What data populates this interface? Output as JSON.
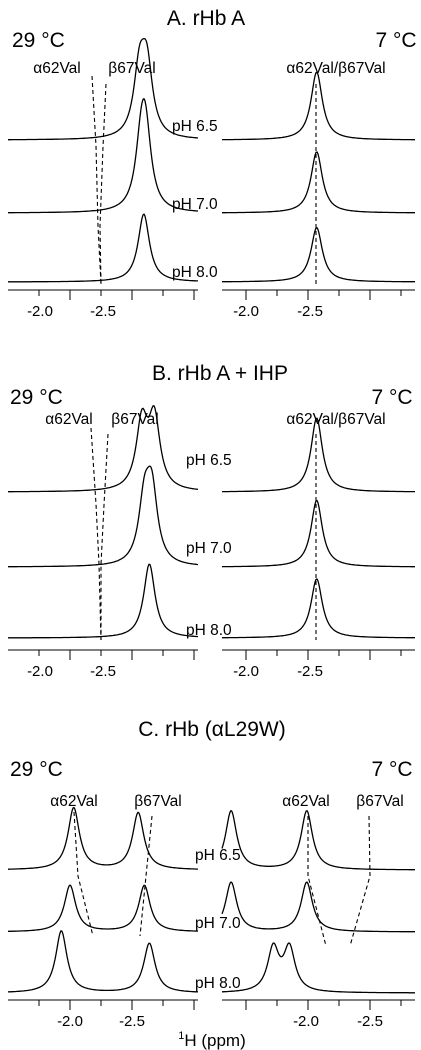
{
  "chart_data": [
    {
      "type": "line",
      "title": "A. rHb A",
      "panels": [
        {
          "temperature": "29 °C",
          "peak_labels": [
            "α62Val",
            "β67Val"
          ],
          "x_ticks": [
            "-2.0",
            "-2.5"
          ],
          "xlim": [
            -1.65,
            -2.95
          ],
          "spectra": [
            {
              "label": "pH 6.5",
              "peaks": [
                {
                  "ppm": -2.62,
                  "height": 1.0
                },
                {
                  "ppm": -2.56,
                  "height": 0.93
                }
              ]
            },
            {
              "label": "pH 7.0",
              "peaks": [
                {
                  "ppm": -2.61,
                  "height": 1.0
                },
                {
                  "ppm": -2.575,
                  "height": 0.85
                }
              ]
            },
            {
              "label": "pH 8.0",
              "peaks": [
                {
                  "ppm": -2.595,
                  "height": 1.0
                }
              ]
            }
          ]
        },
        {
          "temperature": "7 °C",
          "peak_labels": [
            "α62Val/β67Val"
          ],
          "x_ticks": [
            "-2.0",
            "-2.5"
          ],
          "xlim": [
            -1.65,
            -2.95
          ],
          "spectra": [
            {
              "label": "pH 6.5",
              "peaks": [
                {
                  "ppm": -2.57,
                  "height": 1.0
                }
              ]
            },
            {
              "label": "pH 7.0",
              "peaks": [
                {
                  "ppm": -2.57,
                  "height": 0.9
                }
              ]
            },
            {
              "label": "pH 8.0",
              "peaks": [
                {
                  "ppm": -2.57,
                  "height": 0.8
                }
              ]
            }
          ]
        }
      ]
    },
    {
      "type": "line",
      "title": "B. rHb A + IHP",
      "panels": [
        {
          "temperature": "29 °C",
          "peak_labels": [
            "α62Val",
            "β67Val"
          ],
          "x_ticks": [
            "-2.0",
            "-2.5"
          ],
          "xlim": [
            -1.65,
            -2.95
          ],
          "spectra": [
            {
              "label": "pH 6.5",
              "peaks": [
                {
                  "ppm": -2.68,
                  "height": 0.95
                },
                {
                  "ppm": -2.58,
                  "height": 0.9
                }
              ]
            },
            {
              "label": "pH 7.0",
              "peaks": [
                {
                  "ppm": -2.66,
                  "height": 0.95
                },
                {
                  "ppm": -2.6,
                  "height": 0.8
                }
              ]
            },
            {
              "label": "pH 8.0",
              "peaks": [
                {
                  "ppm": -2.64,
                  "height": 1.0
                }
              ]
            }
          ]
        },
        {
          "temperature": "7 °C",
          "peak_labels": [
            "α62Val/β67Val"
          ],
          "x_ticks": [
            "-2.0",
            "-2.5"
          ],
          "xlim": [
            -1.65,
            -2.95
          ],
          "spectra": [
            {
              "label": "pH 6.5",
              "peaks": [
                {
                  "ppm": -2.57,
                  "height": 1.0
                }
              ]
            },
            {
              "label": "pH 7.0",
              "peaks": [
                {
                  "ppm": -2.57,
                  "height": 0.9
                }
              ]
            },
            {
              "label": "pH 8.0",
              "peaks": [
                {
                  "ppm": -2.57,
                  "height": 0.8
                }
              ]
            }
          ]
        }
      ]
    },
    {
      "type": "line",
      "title": "C. rHb (αL29W)",
      "panels": [
        {
          "temperature": "29 °C",
          "peak_labels": [
            "α62Val",
            "β67Val"
          ],
          "x_ticks": [
            "-2.0",
            "-2.5"
          ],
          "xlim": [
            -1.65,
            -2.95
          ],
          "spectra": [
            {
              "label": "pH 6.5",
              "peaks": [
                {
                  "ppm": -2.03,
                  "height": 1.0
                },
                {
                  "ppm": -2.55,
                  "height": 0.92
                }
              ]
            },
            {
              "label": "pH 7.0",
              "peaks": [
                {
                  "ppm": -2.0,
                  "height": 0.75
                },
                {
                  "ppm": -2.6,
                  "height": 0.75
                }
              ]
            },
            {
              "label": "pH 8.0",
              "peaks": [
                {
                  "ppm": -1.93,
                  "height": 1.0
                },
                {
                  "ppm": -2.64,
                  "height": 0.8
                }
              ]
            }
          ]
        },
        {
          "temperature": "7 °C",
          "peak_labels": [
            "α62Val",
            "β67Val"
          ],
          "x_ticks": [
            "-2.0",
            "-2.5"
          ],
          "xlim": [
            -1.65,
            -2.95
          ],
          "spectra": [
            {
              "label": "pH 6.5",
              "peaks": [
                {
                  "ppm": -1.88,
                  "height": 0.95
                },
                {
                  "ppm": -2.49,
                  "height": 0.95
                }
              ]
            },
            {
              "label": "pH 7.0",
              "peaks": [
                {
                  "ppm": -1.88,
                  "height": 0.8
                },
                {
                  "ppm": -2.49,
                  "height": 0.8
                }
              ]
            },
            {
              "label": "pH 8.0",
              "peaks": [
                {
                  "ppm": -2.22,
                  "height": 0.7
                },
                {
                  "ppm": -2.35,
                  "height": 0.7
                }
              ]
            }
          ]
        }
      ]
    }
  ],
  "x_axis_label_superscript": "1",
  "x_axis_label": "H (ppm)"
}
